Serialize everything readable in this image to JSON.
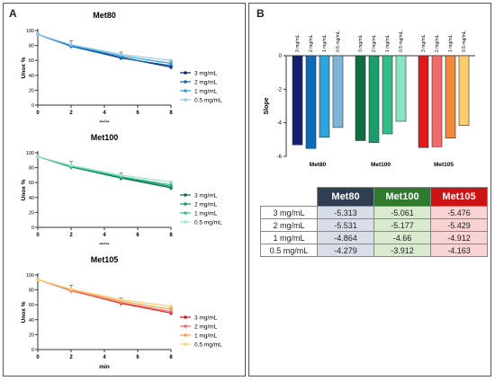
{
  "panel_labels": {
    "a": "A",
    "b": "B"
  },
  "colors": {
    "met80": [
      "#0d1d6e",
      "#1561b0",
      "#2aa0d8",
      "#93c9e8"
    ],
    "met100": [
      "#0a6b46",
      "#14956a",
      "#35bf8a",
      "#9ee6c6"
    ],
    "met105": [
      "#d81b1b",
      "#f26a6a",
      "#f5a24a",
      "#f7d27a"
    ],
    "bars": [
      "#14206d",
      "#0d6ab7",
      "#2fa3dc",
      "#7eb5d8",
      "#0e6e43",
      "#1b9c6b",
      "#34bd8a",
      "#8be3c2",
      "#e01a1a",
      "#f26c6c",
      "#f18a3d",
      "#f9cd6b"
    ],
    "table_head": [
      "#2f3e52",
      "#2f7a2e",
      "#cc1414"
    ],
    "table_cell": [
      "#d8dee7",
      "#d9ead1",
      "#f8d3d3"
    ]
  },
  "chart_data": [
    {
      "type": "line",
      "title": "Met80",
      "xlabel": "min",
      "ylabel": "Unox %",
      "xlim": [
        0,
        8
      ],
      "ylim": [
        0,
        100
      ],
      "xticks": [
        "0",
        "2",
        "4",
        "6",
        "8"
      ],
      "yticks": [
        "0",
        "20",
        "40",
        "60",
        "80",
        "100"
      ],
      "x": [
        0,
        2,
        5,
        8
      ],
      "series": [
        {
          "name": "3 mg/mL",
          "values": [
            95,
            79,
            64,
            51
          ]
        },
        {
          "name": "2 mg/mL",
          "values": [
            95,
            79,
            63,
            53
          ]
        },
        {
          "name": "1 mg/mL",
          "values": [
            95,
            80,
            66,
            56
          ]
        },
        {
          "name": "0.5 mg/mL",
          "values": [
            95,
            81,
            68,
            60
          ]
        }
      ]
    },
    {
      "type": "line",
      "title": "Met100",
      "xlabel": "min",
      "ylabel": "Unox %",
      "xlim": [
        0,
        8
      ],
      "ylim": [
        0,
        100
      ],
      "xticks": [
        "0",
        "2",
        "4",
        "6",
        "8"
      ],
      "yticks": [
        "0",
        "20",
        "40",
        "60",
        "80",
        "100"
      ],
      "x": [
        0,
        2,
        5,
        8
      ],
      "series": [
        {
          "name": "3 mg/mL",
          "values": [
            95,
            81,
            66,
            53
          ]
        },
        {
          "name": "2 mg/mL",
          "values": [
            95,
            81,
            67,
            55
          ]
        },
        {
          "name": "1 mg/mL",
          "values": [
            95,
            82,
            68,
            57
          ]
        },
        {
          "name": "0.5 mg/mL",
          "values": [
            95,
            83,
            70,
            61
          ]
        }
      ]
    },
    {
      "type": "line",
      "title": "Met105",
      "xlabel": "min",
      "ylabel": "Unox %",
      "xlim": [
        0,
        8
      ],
      "ylim": [
        0,
        100
      ],
      "xticks": [
        "0",
        "2",
        "4",
        "6",
        "8"
      ],
      "yticks": [
        "0",
        "20",
        "40",
        "60",
        "80",
        "100"
      ],
      "x": [
        0,
        2,
        5,
        8
      ],
      "series": [
        {
          "name": "3 mg/mL",
          "values": [
            94,
            79,
            62,
            49
          ]
        },
        {
          "name": "2 mg/mL",
          "values": [
            94,
            79,
            63,
            51
          ]
        },
        {
          "name": "1 mg/mL",
          "values": [
            94,
            80,
            65,
            54
          ]
        },
        {
          "name": "0.5 mg/mL",
          "values": [
            94,
            81,
            67,
            58
          ]
        }
      ]
    },
    {
      "type": "bar",
      "ylabel": "Slope",
      "ylim": [
        -6,
        0
      ],
      "yticks": [
        "0",
        "-2",
        "-4",
        "-6"
      ],
      "groups": [
        "Met80",
        "Met100",
        "Met105"
      ],
      "bar_labels": [
        "3 mg/mL",
        "2 mg/mL",
        "1 mg/mL",
        "0.5 mg/mL"
      ],
      "values": [
        [
          -5.313,
          -5.531,
          -4.864,
          -4.279
        ],
        [
          -5.061,
          -5.177,
          -4.66,
          -3.912
        ],
        [
          -5.476,
          -5.429,
          -4.912,
          -4.163
        ]
      ]
    },
    {
      "type": "table",
      "columns": [
        "Met80",
        "Met100",
        "Met105"
      ],
      "rows": [
        {
          "label": "3 mg/mL",
          "values": [
            "-5.313",
            "-5.061",
            "-5.476"
          ]
        },
        {
          "label": "2 mg/mL",
          "values": [
            "-5.531",
            "-5.177",
            "-5.429"
          ]
        },
        {
          "label": "1 mg/mL",
          "values": [
            "-4.864",
            "-4.66",
            "-4.912"
          ]
        },
        {
          "label": "0.5 mg/mL",
          "values": [
            "-4.279",
            "-3.912",
            "-4.163"
          ]
        }
      ]
    }
  ]
}
